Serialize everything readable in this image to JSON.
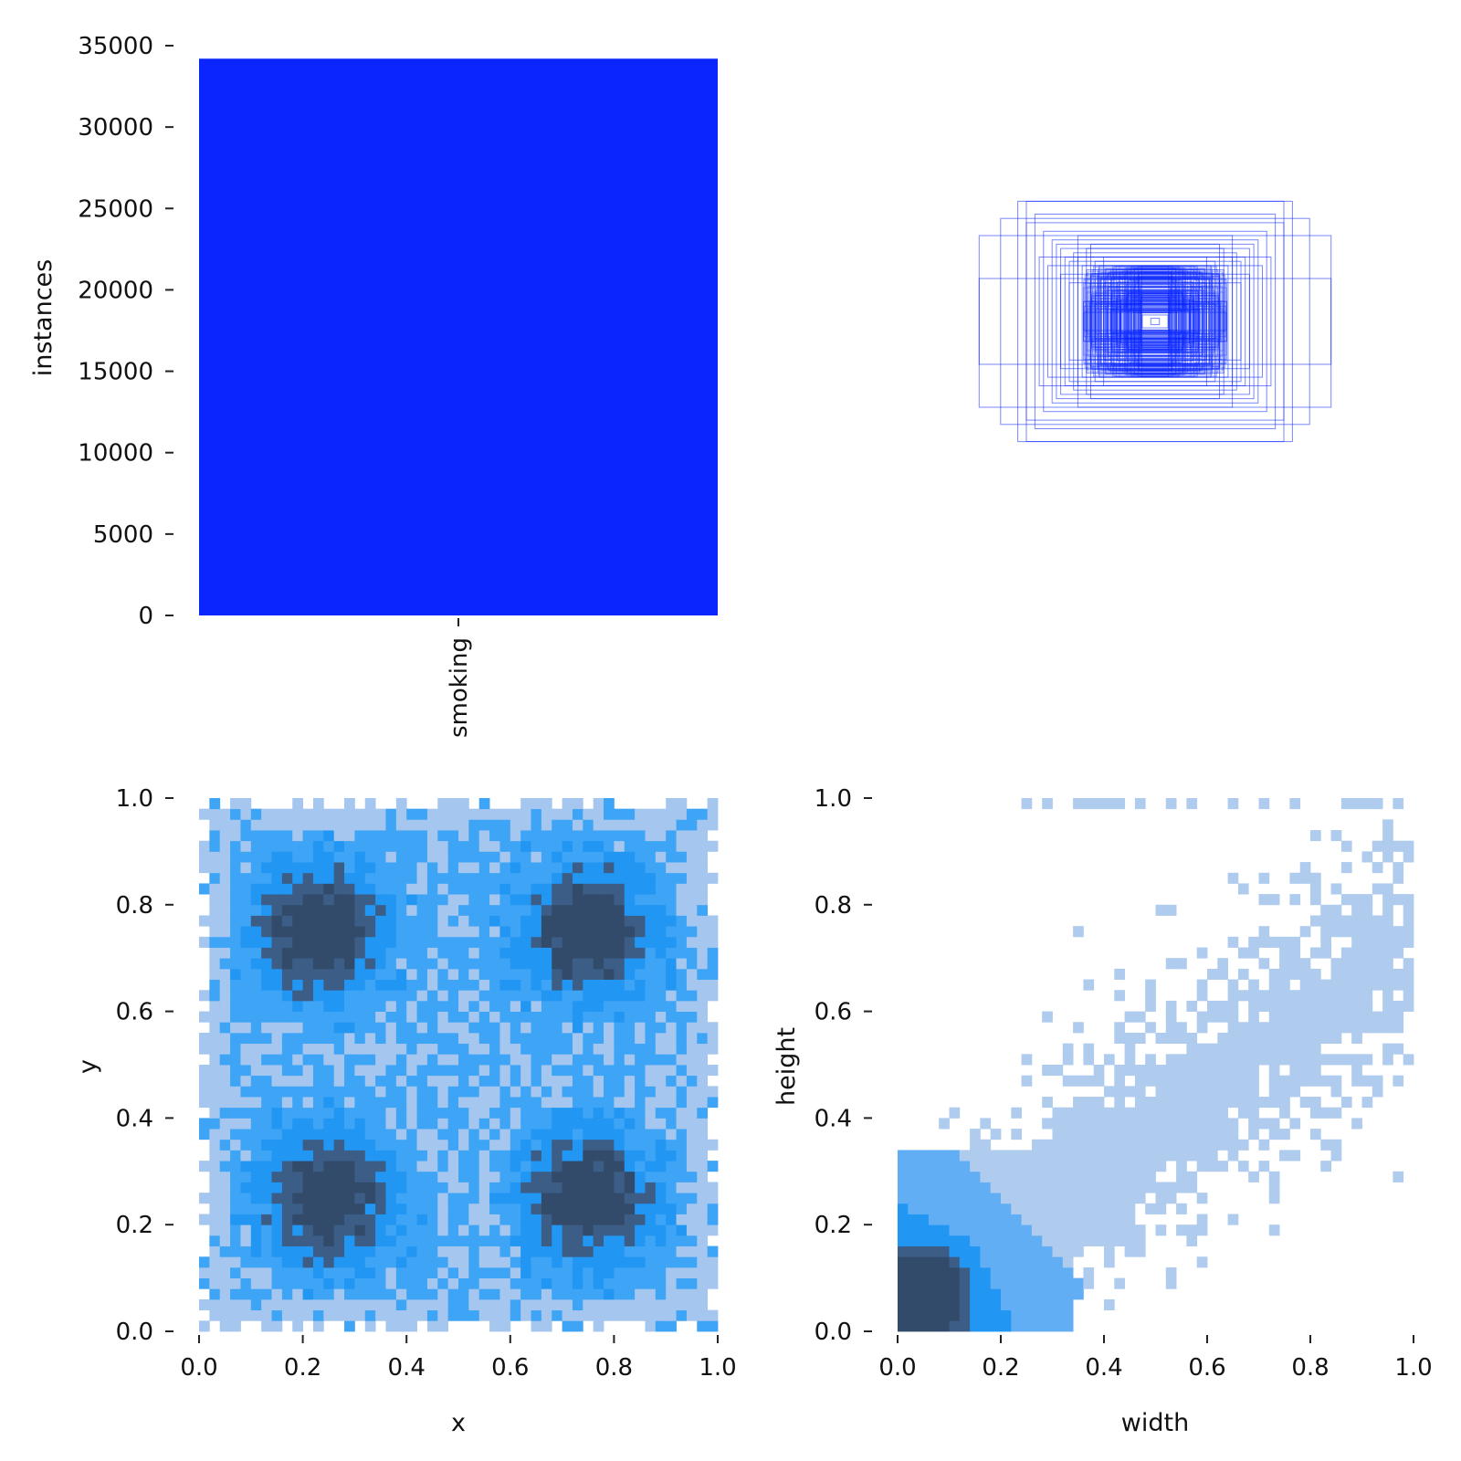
{
  "chart_data": [
    {
      "panel": "class-counts",
      "type": "bar",
      "categories": [
        "smoking"
      ],
      "values": [
        34200
      ],
      "ylabel": "instances",
      "xlabel": "",
      "ylim": [
        0,
        35000
      ],
      "yticks": [
        "0",
        "5000",
        "10000",
        "15000",
        "20000",
        "25000",
        "30000",
        "35000"
      ],
      "bar_color": "#0a25fe",
      "grid": false
    },
    {
      "panel": "box-overlay",
      "type": "scatter",
      "description_axes": false,
      "boxes_wh": [
        [
          0.82,
          0.4
        ],
        [
          0.82,
          0.2
        ],
        [
          0.72,
          0.48
        ],
        [
          0.64,
          0.56
        ],
        [
          0.6,
          0.56
        ],
        [
          0.56,
          0.5
        ],
        [
          0.6,
          0.46
        ],
        [
          0.52,
          0.42
        ],
        [
          0.48,
          0.38
        ],
        [
          0.46,
          0.36
        ],
        [
          0.44,
          0.34
        ],
        [
          0.42,
          0.3
        ],
        [
          0.4,
          0.28
        ],
        [
          0.38,
          0.32
        ],
        [
          0.36,
          0.3
        ],
        [
          0.34,
          0.26
        ],
        [
          0.32,
          0.24
        ],
        [
          0.3,
          0.22
        ],
        [
          0.28,
          0.2
        ],
        [
          0.26,
          0.2
        ],
        [
          0.24,
          0.18
        ],
        [
          0.22,
          0.16
        ],
        [
          0.2,
          0.14
        ],
        [
          0.36,
          0.4
        ],
        [
          0.3,
          0.36
        ],
        [
          0.24,
          0.3
        ],
        [
          0.18,
          0.12
        ],
        [
          0.16,
          0.1
        ],
        [
          0.14,
          0.08
        ],
        [
          0.12,
          0.06
        ],
        [
          0.1,
          0.05
        ],
        [
          0.08,
          0.04
        ],
        [
          0.06,
          0.03
        ],
        [
          0.44,
          0.22
        ],
        [
          0.4,
          0.18
        ],
        [
          0.5,
          0.26
        ],
        [
          0.32,
          0.34
        ],
        [
          0.28,
          0.28
        ],
        [
          0.26,
          0.26
        ],
        [
          0.54,
          0.3
        ],
        [
          0.02,
          0.015
        ]
      ],
      "line_color": "#0a25fe"
    },
    {
      "panel": "xy-histogram",
      "type": "heatmap",
      "xlabel": "x",
      "ylabel": "y",
      "xlim": [
        0,
        1
      ],
      "ylim": [
        0,
        1
      ],
      "xticks": [
        "0.0",
        "0.2",
        "0.4",
        "0.6",
        "0.8",
        "1.0"
      ],
      "yticks": [
        "0.0",
        "0.2",
        "0.4",
        "0.6",
        "0.8",
        "1.0"
      ],
      "bins": 50,
      "density_peaks": [
        [
          0.23,
          0.75
        ],
        [
          0.75,
          0.75
        ],
        [
          0.25,
          0.25
        ],
        [
          0.75,
          0.25
        ]
      ],
      "support": {
        "x": [
          0.0,
          1.0
        ],
        "y": [
          0.0,
          1.0
        ]
      },
      "colormap": [
        "#a5c6ee",
        "#3ea4f5",
        "#2196f3",
        "#3c5d86",
        "#334b6b"
      ]
    },
    {
      "panel": "wh-histogram",
      "type": "heatmap",
      "xlabel": "width",
      "ylabel": "height",
      "xlim": [
        0,
        1
      ],
      "ylim": [
        0,
        1
      ],
      "xticks": [
        "0.0",
        "0.2",
        "0.4",
        "0.6",
        "0.8",
        "1.0"
      ],
      "yticks": [
        "0.0",
        "0.2",
        "0.4",
        "0.6",
        "0.8",
        "1.0"
      ],
      "bins": 50,
      "density_peak": [
        0.06,
        0.08
      ],
      "correlation": "positive",
      "colormap": [
        "#afcbee",
        "#62aef5",
        "#2196f3",
        "#3c5d86",
        "#334b6b"
      ]
    }
  ]
}
